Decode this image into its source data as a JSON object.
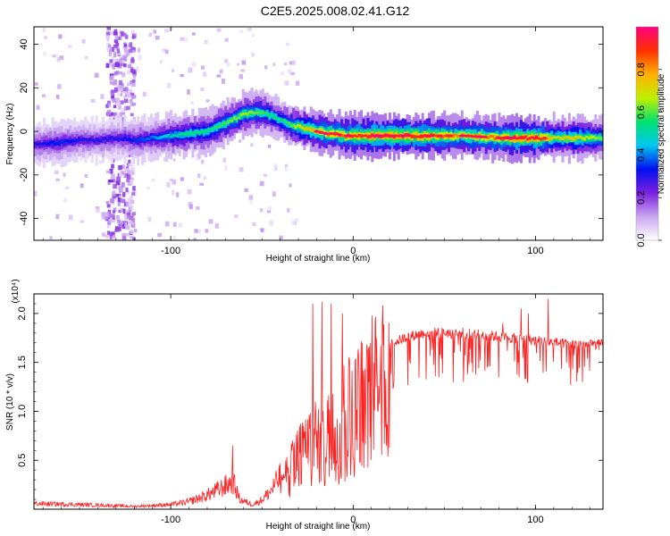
{
  "title": "C2E5.2025.008.02.41.G12",
  "spectrogram": {
    "type": "heatmap",
    "xlabel": "Height of straight line (km)",
    "ylabel": "Frequency (Hz)",
    "xlim": [
      -175,
      137
    ],
    "ylim": [
      -50,
      48
    ],
    "xticks": [
      -100,
      0,
      100
    ],
    "xtick_labels": [
      "-100",
      "0",
      "100"
    ],
    "yticks": [
      -40,
      -20,
      0,
      20,
      40
    ],
    "ytick_labels": [
      "-40",
      "-20",
      "0",
      "20",
      "40"
    ],
    "colorbar": {
      "label": "Normalized spectral amplitude",
      "range": [
        0,
        1
      ],
      "ticks": [
        0.0,
        0.2,
        0.4,
        0.6,
        0.8
      ],
      "tick_labels": [
        "0.0",
        "0.2",
        "0.4",
        "0.6",
        "0.8"
      ],
      "colors": [
        "#ffffff",
        "#c9a6f0",
        "#7b1fe0",
        "#0010f0",
        "#00c8f0",
        "#00e070",
        "#c0f000",
        "#ffb000",
        "#ff3000",
        "#ff0080"
      ]
    },
    "ridge_x": [
      -175,
      -160,
      -150,
      -140,
      -130,
      -120,
      -110,
      -100,
      -90,
      -80,
      -70,
      -60,
      -52,
      -45,
      -40,
      -35,
      -30,
      -25,
      -20,
      -15,
      -10,
      -5,
      0,
      10,
      20,
      40,
      60,
      80,
      90,
      100,
      110,
      120,
      137
    ],
    "ridge_y": [
      -6,
      -5,
      -4,
      -4,
      -3,
      -4,
      -3,
      -2,
      -1,
      0,
      4,
      8,
      9,
      7,
      5,
      3,
      2,
      1,
      0,
      -1,
      -1,
      -2,
      -2,
      -2,
      -2,
      -2,
      -2,
      -3,
      -3,
      -3,
      -3,
      -3,
      -3
    ],
    "ridge_amp": [
      0.3,
      0.35,
      0.3,
      0.3,
      0.3,
      0.35,
      0.4,
      0.5,
      0.55,
      0.55,
      0.6,
      0.65,
      0.6,
      0.55,
      0.55,
      0.6,
      0.7,
      0.75,
      0.8,
      0.85,
      0.85,
      0.85,
      0.9,
      0.95,
      0.95,
      0.9,
      0.8,
      0.85,
      0.95,
      0.95,
      0.7,
      0.75,
      0.6
    ],
    "scatter_band_x": [
      -135,
      -120
    ]
  },
  "snr": {
    "type": "line",
    "xlabel": "Height of straight line (km)",
    "ylabel": "SNR (10 * v/v)",
    "multiplier": "(x10⁴)",
    "xlim": [
      -175,
      137
    ],
    "ylim": [
      0,
      2.2
    ],
    "xticks": [
      -100,
      0,
      100
    ],
    "xtick_labels": [
      "-100",
      "0",
      "100"
    ],
    "yticks": [
      0.5,
      1.0,
      1.5,
      2.0
    ],
    "ytick_labels": [
      "0.5",
      "1.0",
      "1.5",
      "2.0"
    ],
    "color": "#ff2020",
    "envelope_x": [
      -175,
      -150,
      -120,
      -100,
      -90,
      -80,
      -75,
      -70,
      -66,
      -62,
      -55,
      -50,
      -45,
      -40,
      -35,
      -30,
      -25,
      -20,
      -15,
      -10,
      -5,
      0,
      5,
      10,
      20,
      30,
      40,
      60,
      80,
      90,
      100,
      110,
      120,
      137
    ],
    "envelope_y": [
      0.06,
      0.05,
      0.03,
      0.05,
      0.08,
      0.15,
      0.2,
      0.25,
      0.3,
      0.1,
      0.05,
      0.1,
      0.2,
      0.35,
      0.5,
      0.7,
      0.85,
      0.95,
      1.0,
      1.1,
      1.25,
      1.4,
      1.5,
      1.6,
      1.72,
      1.8,
      1.84,
      1.84,
      1.8,
      1.78,
      1.76,
      1.74,
      1.72,
      1.72
    ],
    "spikes_x": [
      -66,
      -22,
      -17,
      -12,
      -6,
      5,
      82,
      92,
      96,
      107
    ],
    "spikes_y": [
      0.65,
      2.1,
      2.12,
      2.1,
      2.0,
      1.7,
      1.9,
      2.05,
      2.0,
      2.15
    ]
  }
}
